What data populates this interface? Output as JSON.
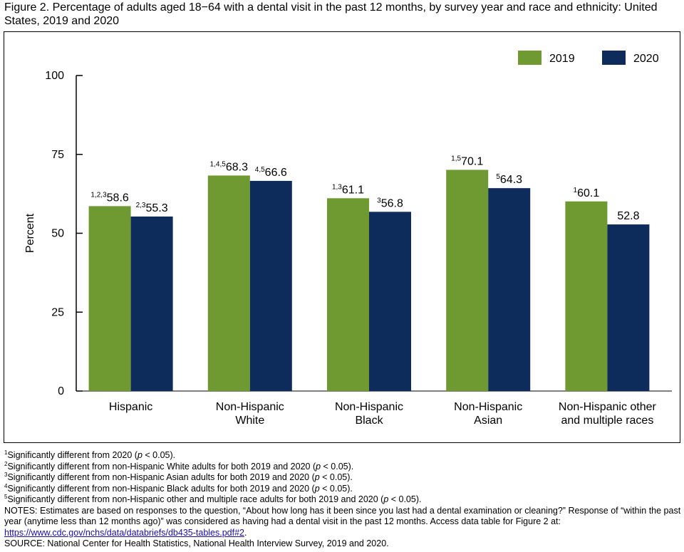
{
  "figure": {
    "title": "Figure 2. Percentage of adults aged 18−64 with a dental visit in the past 12 months, by survey year and race and ethnicity: United States, 2019 and 2020"
  },
  "colors": {
    "series_2019": "#6f9a31",
    "series_2020": "#0d2c5b"
  },
  "chart_data": {
    "type": "bar",
    "categories": [
      [
        "Hispanic"
      ],
      [
        "Non-Hispanic",
        "White"
      ],
      [
        "Non-Hispanic",
        "Black"
      ],
      [
        "Non-Hispanic",
        "Asian"
      ],
      [
        "Non-Hispanic other",
        "and multiple races"
      ]
    ],
    "series": [
      {
        "name": "2019",
        "values": [
          58.6,
          68.3,
          61.1,
          70.1,
          60.1
        ],
        "superscripts": [
          "1,2,3",
          "1,4,5",
          "1,3",
          "1,5",
          "1"
        ]
      },
      {
        "name": "2020",
        "values": [
          55.3,
          66.6,
          56.8,
          64.3,
          52.8
        ],
        "superscripts": [
          "2,3",
          "4,5",
          "3",
          "5",
          ""
        ]
      }
    ],
    "ylabel": "Percent",
    "ylim": [
      0,
      100
    ],
    "yticks": [
      0,
      25,
      50,
      75,
      100
    ],
    "grid": false,
    "legend_position": "top-right"
  },
  "footnotes": [
    {
      "sup": "1",
      "text": "Significantly different from 2020 (",
      "p": "p",
      "tail": " < 0.05)."
    },
    {
      "sup": "2",
      "text": "Significantly different from non-Hispanic White adults for both 2019 and 2020 (",
      "p": "p",
      "tail": " < 0.05)."
    },
    {
      "sup": "3",
      "text": "Significantly different from non-Hispanic Asian adults for both 2019 and 2020 (",
      "p": "p",
      "tail": " < 0.05)."
    },
    {
      "sup": "4",
      "text": "Significantly different from non-Hispanic Black adults for both 2019 and 2020 (",
      "p": "p",
      "tail": " < 0.05)."
    },
    {
      "sup": "5",
      "text": "Significantly different from non-Hispanic other and multiple race adults for both 2019 and 2020 (",
      "p": "p",
      "tail": " < 0.05)."
    }
  ],
  "notes": {
    "text": "NOTES: Estimates are based on responses to the question, “About how long has it been since you last had a dental examination or cleaning?” Response of “within the past year (anytime less than 12 months ago)” was considered as having had a dental visit in the past 12 months. Access data table for Figure 2 at:",
    "link": "https://www.cdc.gov/nchs/data/databriefs/db435-tables.pdf#2",
    "link_tail": "."
  },
  "source": "SOURCE: National Center for Health Statistics, National Health Interview Survey, 2019 and 2020."
}
